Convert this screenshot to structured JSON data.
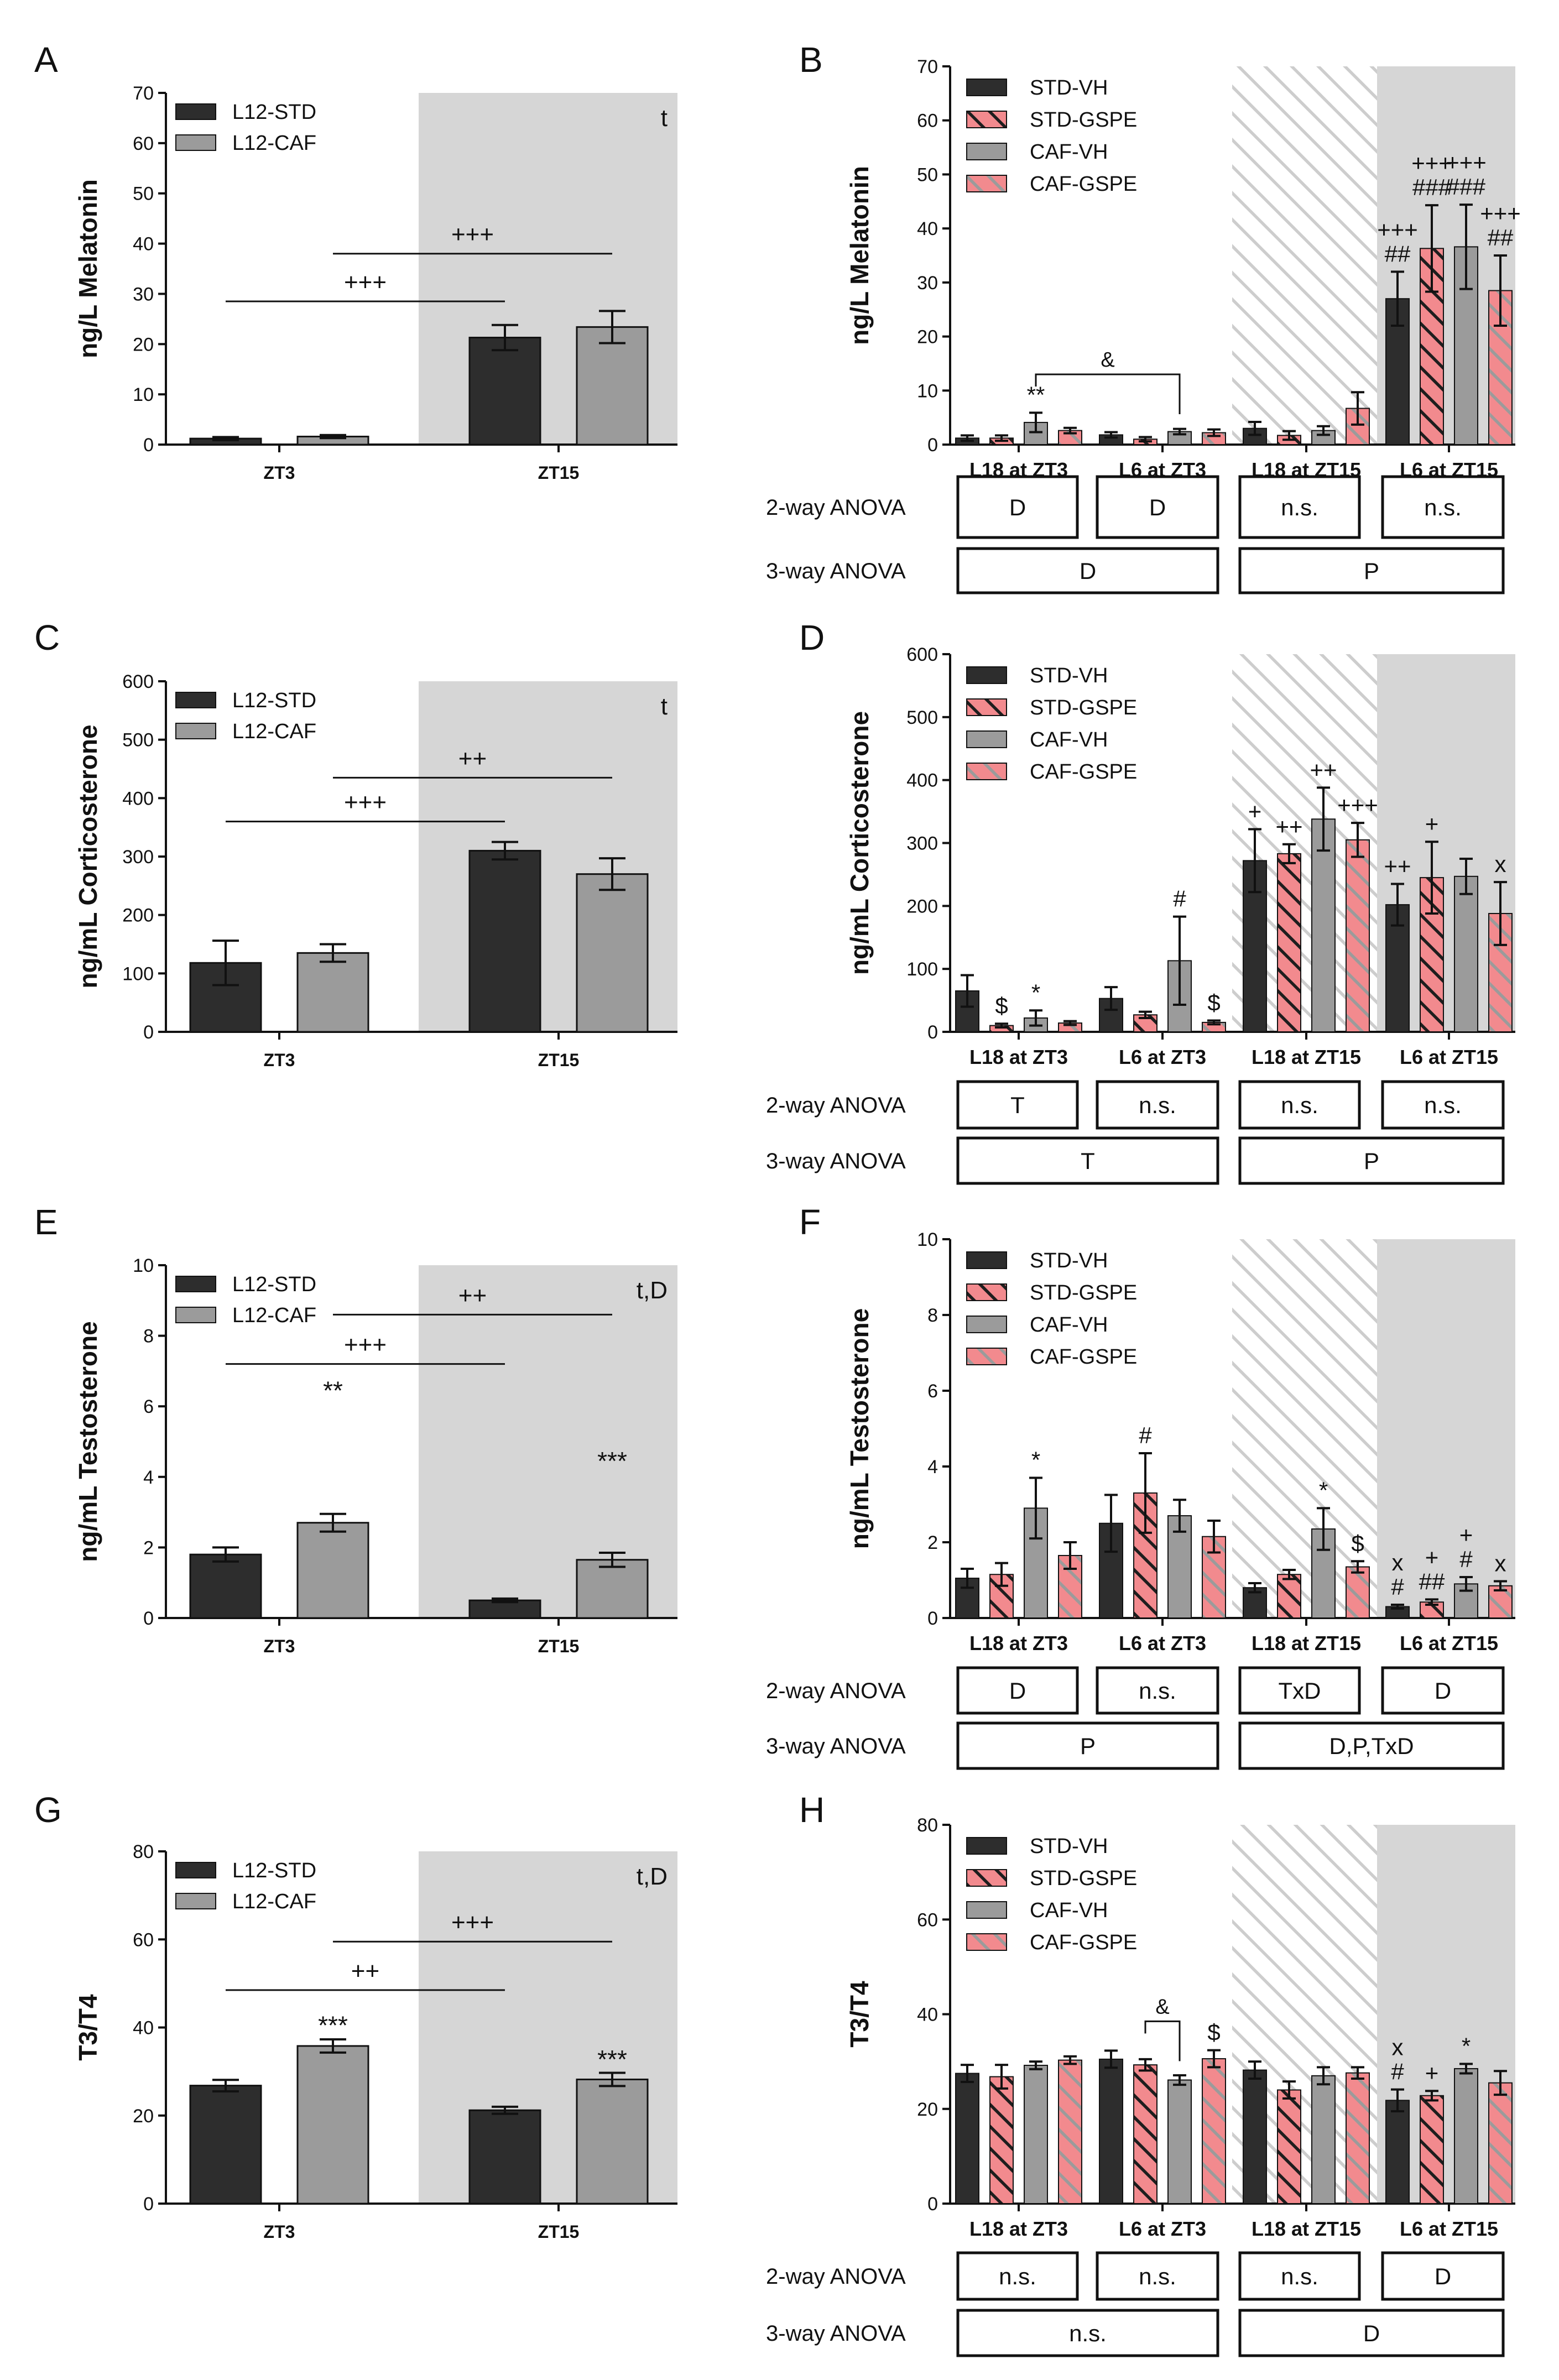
{
  "colors": {
    "std": "#2d2d2d",
    "caf": "#9b9b9b",
    "pink": "#f28a8e",
    "shade": "#d6d6d6",
    "hatch": "#c6c6c6",
    "axis": "#111111"
  },
  "chart_data": [
    {
      "panel": "A",
      "type": "bar",
      "ylabel": "ng/L Melatonin",
      "ylim": [
        0,
        70
      ],
      "yticks": [
        0,
        10,
        20,
        30,
        40,
        50,
        60,
        70
      ],
      "categories": [
        "ZT3",
        "ZT15"
      ],
      "corner_text": "t",
      "series": [
        {
          "name": "L12-STD",
          "values": [
            1.2,
            21.3
          ],
          "errors": [
            0.3,
            2.5
          ]
        },
        {
          "name": "L12-CAF",
          "values": [
            1.6,
            23.4
          ],
          "errors": [
            0.3,
            3.2
          ]
        }
      ],
      "bar_stars": [],
      "comparisons": [
        {
          "label": "+++",
          "from": [
            0,
            0
          ],
          "to": [
            1,
            0
          ],
          "y": 28.5
        },
        {
          "label": "+++",
          "from": [
            0,
            1
          ],
          "to": [
            1,
            1
          ],
          "y": 38.0
        }
      ]
    },
    {
      "panel": "B",
      "type": "bar",
      "ylabel": "ng/L Melatonin",
      "ylim": [
        0,
        70
      ],
      "yticks": [
        0,
        10,
        20,
        30,
        40,
        50,
        60,
        70
      ],
      "categories": [
        "L18 at ZT3",
        "L6 at ZT3",
        "L18 at ZT15",
        "L6 at ZT15"
      ],
      "series": [
        {
          "name": "STD-VH",
          "values": [
            1.2,
            1.8,
            3.0,
            27.0
          ],
          "errors": [
            0.5,
            0.5,
            1.2,
            5.0
          ]
        },
        {
          "name": "STD-GSPE",
          "values": [
            1.2,
            1.0,
            1.7,
            36.3
          ],
          "errors": [
            0.5,
            0.4,
            0.8,
            8.0
          ]
        },
        {
          "name": "CAF-VH",
          "values": [
            4.1,
            2.4,
            2.6,
            36.6
          ],
          "errors": [
            1.8,
            0.5,
            0.8,
            7.8
          ]
        },
        {
          "name": "CAF-GSPE",
          "values": [
            2.6,
            2.2,
            6.7,
            28.5
          ],
          "errors": [
            0.5,
            0.6,
            3.0,
            6.5
          ]
        }
      ],
      "bar_labels": [
        {
          "cat": 0,
          "ser": 2,
          "lines": [
            "**"
          ]
        },
        {
          "cat": 3,
          "ser": 0,
          "lines": [
            "+++",
            "##"
          ]
        },
        {
          "cat": 3,
          "ser": 1,
          "lines": [
            "+++",
            "###"
          ]
        },
        {
          "cat": 3,
          "ser": 2,
          "lines": [
            "+++",
            "###"
          ]
        },
        {
          "cat": 3,
          "ser": 3,
          "lines": [
            "+++",
            "##"
          ]
        }
      ],
      "bracket": {
        "label": "&",
        "from": [
          0,
          2
        ],
        "to": [
          1,
          2
        ],
        "y": 13.0
      },
      "anova2": [
        "D",
        "D",
        "n.s.",
        "n.s."
      ],
      "anova3": [
        "D",
        "P"
      ]
    },
    {
      "panel": "C",
      "type": "bar",
      "ylabel": "ng/mL Corticosterone",
      "ylim": [
        0,
        600
      ],
      "yticks": [
        0,
        100,
        200,
        300,
        400,
        500,
        600
      ],
      "categories": [
        "ZT3",
        "ZT15"
      ],
      "corner_text": "t",
      "series": [
        {
          "name": "L12-STD",
          "values": [
            118,
            310
          ],
          "errors": [
            38,
            15
          ]
        },
        {
          "name": "L12-CAF",
          "values": [
            135,
            270
          ],
          "errors": [
            15,
            27
          ]
        }
      ],
      "bar_stars": [],
      "comparisons": [
        {
          "label": "+++",
          "from": [
            0,
            0
          ],
          "to": [
            1,
            0
          ],
          "y": 360
        },
        {
          "label": "++",
          "from": [
            0,
            1
          ],
          "to": [
            1,
            1
          ],
          "y": 435
        }
      ]
    },
    {
      "panel": "D",
      "type": "bar",
      "ylabel": "ng/mL Corticosterone",
      "ylim": [
        0,
        600
      ],
      "yticks": [
        0,
        100,
        200,
        300,
        400,
        500,
        600
      ],
      "categories": [
        "L18 at ZT3",
        "L6 at ZT3",
        "L18 at ZT15",
        "L6 at ZT15"
      ],
      "series": [
        {
          "name": "STD-VH",
          "values": [
            65,
            53,
            272,
            202
          ],
          "errors": [
            25,
            18,
            50,
            33
          ]
        },
        {
          "name": "STD-GSPE",
          "values": [
            10,
            27,
            283,
            245
          ],
          "errors": [
            3,
            5,
            15,
            57
          ]
        },
        {
          "name": "CAF-VH",
          "values": [
            22,
            113,
            338,
            247
          ],
          "errors": [
            12,
            70,
            50,
            28
          ]
        },
        {
          "name": "CAF-GSPE",
          "values": [
            14,
            15,
            305,
            188
          ],
          "errors": [
            3,
            3,
            27,
            50
          ]
        }
      ],
      "bar_labels": [
        {
          "cat": 0,
          "ser": 1,
          "lines": [
            "$"
          ]
        },
        {
          "cat": 0,
          "ser": 2,
          "lines": [
            "*"
          ]
        },
        {
          "cat": 1,
          "ser": 2,
          "lines": [
            "#"
          ]
        },
        {
          "cat": 1,
          "ser": 3,
          "lines": [
            "$"
          ]
        },
        {
          "cat": 2,
          "ser": 0,
          "lines": [
            "+"
          ]
        },
        {
          "cat": 2,
          "ser": 1,
          "lines": [
            "++"
          ]
        },
        {
          "cat": 2,
          "ser": 2,
          "lines": [
            "++"
          ]
        },
        {
          "cat": 2,
          "ser": 3,
          "lines": [
            "+++"
          ]
        },
        {
          "cat": 3,
          "ser": 0,
          "lines": [
            "++"
          ]
        },
        {
          "cat": 3,
          "ser": 1,
          "lines": [
            "+"
          ]
        },
        {
          "cat": 3,
          "ser": 3,
          "lines": [
            "x"
          ]
        }
      ],
      "anova2": [
        "T",
        "n.s.",
        "n.s.",
        "n.s."
      ],
      "anova3": [
        "T",
        "P"
      ]
    },
    {
      "panel": "E",
      "type": "bar",
      "ylabel": "ng/mL Testosterone",
      "ylim": [
        0,
        10
      ],
      "yticks": [
        0,
        2,
        4,
        6,
        8,
        10
      ],
      "categories": [
        "ZT3",
        "ZT15"
      ],
      "corner_text": "t,D",
      "series": [
        {
          "name": "L12-STD",
          "values": [
            1.8,
            0.5
          ],
          "errors": [
            0.2,
            0.05
          ]
        },
        {
          "name": "L12-CAF",
          "values": [
            2.7,
            1.65
          ],
          "errors": [
            0.25,
            0.2
          ]
        }
      ],
      "bar_stars": [
        {
          "label": "**",
          "cat": 0,
          "y": 6.2
        },
        {
          "label": "***",
          "cat": 1,
          "y": 4.2
        }
      ],
      "comparisons": [
        {
          "label": "+++",
          "from": [
            0,
            0
          ],
          "to": [
            1,
            0
          ],
          "y": 7.2
        },
        {
          "label": "++",
          "from": [
            0,
            1
          ],
          "to": [
            1,
            1
          ],
          "y": 8.6
        }
      ]
    },
    {
      "panel": "F",
      "type": "bar",
      "ylabel": "ng/mL Testosterone",
      "ylim": [
        0,
        10
      ],
      "yticks": [
        0,
        2,
        4,
        6,
        8,
        10
      ],
      "categories": [
        "L18 at ZT3",
        "L6 at ZT3",
        "L18 at ZT15",
        "L6 at ZT15"
      ],
      "series": [
        {
          "name": "STD-VH",
          "values": [
            1.05,
            2.5,
            0.8,
            0.3
          ],
          "errors": [
            0.25,
            0.75,
            0.12,
            0.05
          ]
        },
        {
          "name": "STD-GSPE",
          "values": [
            1.15,
            3.3,
            1.15,
            0.42
          ],
          "errors": [
            0.3,
            1.05,
            0.12,
            0.07
          ]
        },
        {
          "name": "CAF-VH",
          "values": [
            2.9,
            2.7,
            2.35,
            0.9
          ],
          "errors": [
            0.8,
            0.42,
            0.55,
            0.18
          ]
        },
        {
          "name": "CAF-GSPE",
          "values": [
            1.65,
            2.15,
            1.35,
            0.85
          ],
          "errors": [
            0.35,
            0.42,
            0.15,
            0.12
          ]
        }
      ],
      "bar_labels": [
        {
          "cat": 0,
          "ser": 2,
          "lines": [
            "*"
          ]
        },
        {
          "cat": 1,
          "ser": 1,
          "lines": [
            "#"
          ]
        },
        {
          "cat": 2,
          "ser": 2,
          "lines": [
            "*"
          ]
        },
        {
          "cat": 2,
          "ser": 3,
          "lines": [
            "$"
          ]
        },
        {
          "cat": 3,
          "ser": 0,
          "lines": [
            "x",
            "#"
          ]
        },
        {
          "cat": 3,
          "ser": 1,
          "lines": [
            "+",
            "##"
          ]
        },
        {
          "cat": 3,
          "ser": 2,
          "lines": [
            "+",
            "#"
          ]
        },
        {
          "cat": 3,
          "ser": 3,
          "lines": [
            "x"
          ]
        }
      ],
      "anova2": [
        "D",
        "n.s.",
        "TxD",
        "D"
      ],
      "anova3": [
        "P",
        "D,P,TxD"
      ]
    },
    {
      "panel": "G",
      "type": "bar",
      "ylabel": "T3/T4",
      "ylim": [
        0,
        80
      ],
      "yticks": [
        0,
        20,
        40,
        60,
        80
      ],
      "categories": [
        "ZT3",
        "ZT15"
      ],
      "corner_text": "t,D",
      "series": [
        {
          "name": "L12-STD",
          "values": [
            26.8,
            21.2
          ],
          "errors": [
            1.3,
            0.8
          ]
        },
        {
          "name": "L12-CAF",
          "values": [
            35.8,
            28.2
          ],
          "errors": [
            1.5,
            1.5
          ]
        }
      ],
      "bar_stars": [
        {
          "label": "***",
          "cat": 0,
          "y": 38.5
        },
        {
          "label": "***",
          "cat": 1,
          "y": 30.8
        }
      ],
      "comparisons": [
        {
          "label": "++",
          "from": [
            0,
            0
          ],
          "to": [
            1,
            0
          ],
          "y": 48.5
        },
        {
          "label": "+++",
          "from": [
            0,
            1
          ],
          "to": [
            1,
            1
          ],
          "y": 59.5
        }
      ]
    },
    {
      "panel": "H",
      "type": "bar",
      "ylabel": "T3/T4",
      "ylim": [
        0,
        80
      ],
      "yticks": [
        0,
        20,
        40,
        60,
        80
      ],
      "categories": [
        "L18 at ZT3",
        "L6 at ZT3",
        "L18 at ZT15",
        "L6 at ZT15"
      ],
      "series": [
        {
          "name": "STD-VH",
          "values": [
            27.5,
            30.5,
            28.2,
            21.8
          ],
          "errors": [
            1.8,
            1.8,
            1.8,
            2.3
          ]
        },
        {
          "name": "STD-GSPE",
          "values": [
            26.8,
            29.3,
            24.0,
            22.8
          ],
          "errors": [
            2.5,
            1.2,
            1.8,
            1.0
          ]
        },
        {
          "name": "CAF-VH",
          "values": [
            29.2,
            26.1,
            27.0,
            28.5
          ],
          "errors": [
            0.8,
            1.0,
            1.8,
            1.0
          ]
        },
        {
          "name": "CAF-GSPE",
          "values": [
            30.3,
            30.6,
            27.6,
            25.5
          ],
          "errors": [
            0.8,
            1.8,
            1.2,
            2.5
          ]
        }
      ],
      "bar_labels": [
        {
          "cat": 1,
          "ser": 3,
          "lines": [
            "$"
          ]
        },
        {
          "cat": 3,
          "ser": 0,
          "lines": [
            "x",
            "#"
          ]
        },
        {
          "cat": 3,
          "ser": 1,
          "lines": [
            "+"
          ]
        },
        {
          "cat": 3,
          "ser": 2,
          "lines": [
            "*"
          ]
        }
      ],
      "bracket": {
        "label": "&",
        "from": [
          1,
          1
        ],
        "to": [
          1,
          2
        ],
        "y": 38.5
      },
      "anova2": [
        "n.s.",
        "n.s.",
        "n.s.",
        "D"
      ],
      "anova3": [
        "n.s.",
        "D"
      ]
    }
  ],
  "anova_labels": {
    "two_way": "2-way ANOVA",
    "three_way": "3-way ANOVA"
  }
}
